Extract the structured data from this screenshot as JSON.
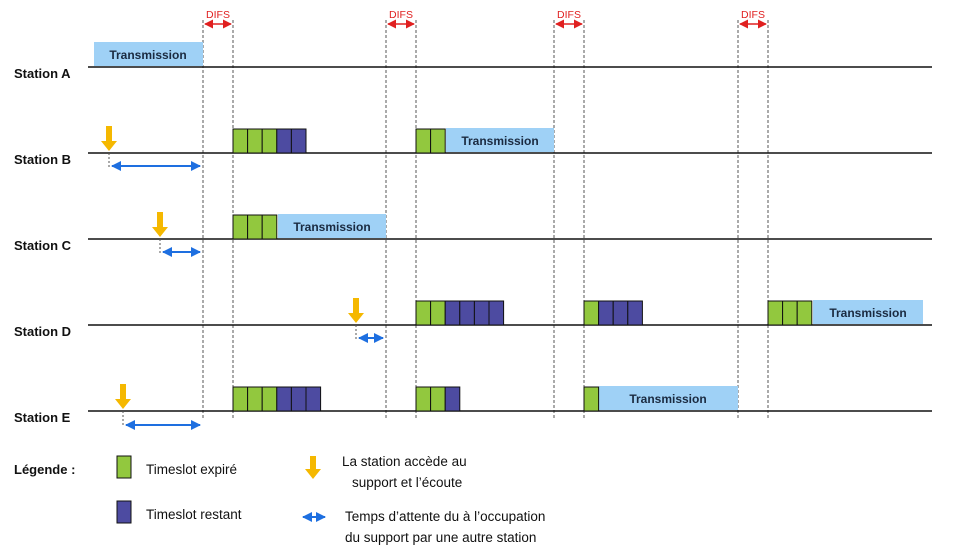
{
  "difs_label": "DIFS",
  "stations": [
    {
      "label": "Station A"
    },
    {
      "label": "Station B"
    },
    {
      "label": "Station C"
    },
    {
      "label": "Station D"
    },
    {
      "label": "Station E"
    }
  ],
  "transmission_label": "Transmission",
  "legend": {
    "title": "Légende :",
    "expired": "Timeslot expiré",
    "remaining": "Timeslot restant",
    "access_line1": "La station accède au",
    "access_line2": "support et l’écoute",
    "wait_line1": "Temps d’attente du à l’occupation",
    "wait_line2": "du support par une autre station"
  },
  "colors": {
    "expired": "#92c83e",
    "remaining": "#4d4ba1",
    "transmission": "#9fd1f6",
    "difs": "#e02020",
    "arrow": "#1e6fe0",
    "access": "#f5b800"
  }
}
